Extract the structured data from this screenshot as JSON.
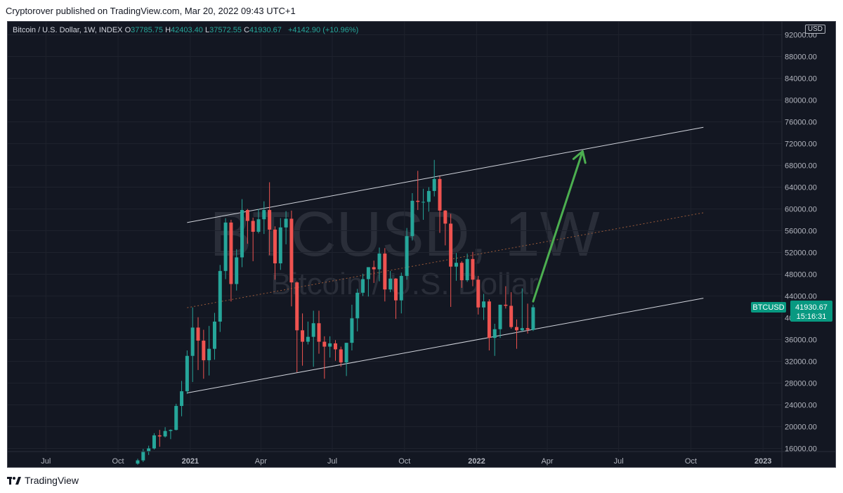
{
  "header": {
    "published_text": "Cryptorover published on TradingView.com, Mar 20, 2022 09:43 UTC+1"
  },
  "legend": {
    "symbol": "Bitcoin / U.S. Dollar, 1W, INDEX",
    "o_label": "O",
    "o_value": "37785.75",
    "h_label": "H",
    "h_value": "42403.40",
    "l_label": "L",
    "l_value": "37572.55",
    "c_label": "C",
    "c_value": "41930.67",
    "change": "+4142.90 (+10.96%)"
  },
  "currency_button": "USD",
  "watermark": {
    "main": "BTCUSD, 1W",
    "sub": "Bitcoin / U.S. Dollar"
  },
  "price_badge": {
    "symbol": "BTCUSD",
    "price": "41930.67",
    "countdown": "15:16:31"
  },
  "footer": {
    "brand": "TradingView"
  },
  "colors": {
    "up": "#26a69a",
    "down": "#ef5350",
    "background": "#131722",
    "arrow": "#4caf50",
    "accent": "#089981"
  },
  "chart_data": {
    "type": "candlestick",
    "title": "Bitcoin / U.S. Dollar, 1W, INDEX",
    "ylim": [
      14000,
      94000
    ],
    "y_ticks": [
      16000,
      20000,
      24000,
      28000,
      32000,
      36000,
      40000,
      44000,
      48000,
      52000,
      56000,
      60000,
      64000,
      68000,
      72000,
      76000,
      80000,
      84000,
      88000,
      92000
    ],
    "y_tick_labels": [
      "16000.00",
      "20000.00",
      "24000.00",
      "28000.00",
      "32000.00",
      "36000.00",
      "40000.00",
      "44000.00",
      "48000.00",
      "52000.00",
      "56000.00",
      "60000.00",
      "64000.00",
      "68000.00",
      "72000.00",
      "76000.00",
      "80000.00",
      "84000.00",
      "88000.00",
      "92000.00"
    ],
    "x_ticks": [
      {
        "label": "Jul",
        "date": "2020-07-01",
        "bold": false
      },
      {
        "label": "Oct",
        "date": "2020-10-01",
        "bold": false
      },
      {
        "label": "2021",
        "date": "2021-01-01",
        "bold": true
      },
      {
        "label": "Apr",
        "date": "2021-04-01",
        "bold": false
      },
      {
        "label": "Jul",
        "date": "2021-07-01",
        "bold": false
      },
      {
        "label": "Oct",
        "date": "2021-10-01",
        "bold": false
      },
      {
        "label": "2022",
        "date": "2022-01-01",
        "bold": true
      },
      {
        "label": "Apr",
        "date": "2022-04-01",
        "bold": false
      },
      {
        "label": "Jul",
        "date": "2022-07-01",
        "bold": false
      },
      {
        "label": "Oct",
        "date": "2022-10-01",
        "bold": false
      },
      {
        "label": "2023",
        "date": "2023-01-01",
        "bold": true
      }
    ],
    "candles": [
      {
        "date": "2020-10-26",
        "o": 13200,
        "h": 14100,
        "l": 13000,
        "c": 13800
      },
      {
        "date": "2020-11-02",
        "o": 13800,
        "h": 15900,
        "l": 13500,
        "c": 15500
      },
      {
        "date": "2020-11-09",
        "o": 15500,
        "h": 16500,
        "l": 14800,
        "c": 16000
      },
      {
        "date": "2020-11-16",
        "o": 16000,
        "h": 18800,
        "l": 15800,
        "c": 18400
      },
      {
        "date": "2020-11-23",
        "o": 18400,
        "h": 19400,
        "l": 16300,
        "c": 18200
      },
      {
        "date": "2020-11-30",
        "o": 18200,
        "h": 19900,
        "l": 18000,
        "c": 19200
      },
      {
        "date": "2020-12-07",
        "o": 19200,
        "h": 19500,
        "l": 17700,
        "c": 19400
      },
      {
        "date": "2020-12-14",
        "o": 19400,
        "h": 24200,
        "l": 19300,
        "c": 23800
      },
      {
        "date": "2020-12-21",
        "o": 23800,
        "h": 28400,
        "l": 21900,
        "c": 26500
      },
      {
        "date": "2020-12-28",
        "o": 26500,
        "h": 34000,
        "l": 26000,
        "c": 33000
      },
      {
        "date": "2021-01-04",
        "o": 33000,
        "h": 41900,
        "l": 28200,
        "c": 38200
      },
      {
        "date": "2021-01-11",
        "o": 38200,
        "h": 40100,
        "l": 30400,
        "c": 35800
      },
      {
        "date": "2021-01-18",
        "o": 35800,
        "h": 37800,
        "l": 28800,
        "c": 32200
      },
      {
        "date": "2021-01-25",
        "o": 32200,
        "h": 38500,
        "l": 29400,
        "c": 34300
      },
      {
        "date": "2021-02-01",
        "o": 34300,
        "h": 40900,
        "l": 32300,
        "c": 39300
      },
      {
        "date": "2021-02-08",
        "o": 39300,
        "h": 49700,
        "l": 37400,
        "c": 48600
      },
      {
        "date": "2021-02-15",
        "o": 48600,
        "h": 58300,
        "l": 47100,
        "c": 57500
      },
      {
        "date": "2021-02-22",
        "o": 57500,
        "h": 58000,
        "l": 43000,
        "c": 46200
      },
      {
        "date": "2021-03-01",
        "o": 46200,
        "h": 52600,
        "l": 45000,
        "c": 51100
      },
      {
        "date": "2021-03-08",
        "o": 51100,
        "h": 61800,
        "l": 49300,
        "c": 59800
      },
      {
        "date": "2021-03-15",
        "o": 59800,
        "h": 60000,
        "l": 53600,
        "c": 57800
      },
      {
        "date": "2021-03-22",
        "o": 57800,
        "h": 58400,
        "l": 50400,
        "c": 55800
      },
      {
        "date": "2021-03-29",
        "o": 55800,
        "h": 60000,
        "l": 55500,
        "c": 58100
      },
      {
        "date": "2021-04-05",
        "o": 58100,
        "h": 61400,
        "l": 55400,
        "c": 59800
      },
      {
        "date": "2021-04-12",
        "o": 59800,
        "h": 64900,
        "l": 51500,
        "c": 56200
      },
      {
        "date": "2021-04-19",
        "o": 56200,
        "h": 56800,
        "l": 47000,
        "c": 50000
      },
      {
        "date": "2021-04-26",
        "o": 50000,
        "h": 58300,
        "l": 48800,
        "c": 56600
      },
      {
        "date": "2021-05-03",
        "o": 56600,
        "h": 59600,
        "l": 53500,
        "c": 58200
      },
      {
        "date": "2021-05-10",
        "o": 58200,
        "h": 59700,
        "l": 42100,
        "c": 46500
      },
      {
        "date": "2021-05-17",
        "o": 46500,
        "h": 46700,
        "l": 30000,
        "c": 37700
      },
      {
        "date": "2021-05-24",
        "o": 37700,
        "h": 40800,
        "l": 31200,
        "c": 35600
      },
      {
        "date": "2021-05-31",
        "o": 35600,
        "h": 39300,
        "l": 35100,
        "c": 36500
      },
      {
        "date": "2021-06-07",
        "o": 36500,
        "h": 41300,
        "l": 31000,
        "c": 39000
      },
      {
        "date": "2021-06-14",
        "o": 39000,
        "h": 41300,
        "l": 33400,
        "c": 35600
      },
      {
        "date": "2021-06-21",
        "o": 35600,
        "h": 36600,
        "l": 28800,
        "c": 34700
      },
      {
        "date": "2021-06-28",
        "o": 34700,
        "h": 36600,
        "l": 32700,
        "c": 35300
      },
      {
        "date": "2021-07-05",
        "o": 35300,
        "h": 35900,
        "l": 32100,
        "c": 34200
      },
      {
        "date": "2021-07-12",
        "o": 34200,
        "h": 34700,
        "l": 31000,
        "c": 31800
      },
      {
        "date": "2021-07-19",
        "o": 31800,
        "h": 35400,
        "l": 29300,
        "c": 35400
      },
      {
        "date": "2021-07-26",
        "o": 35400,
        "h": 42400,
        "l": 34000,
        "c": 39900
      },
      {
        "date": "2021-08-02",
        "o": 39900,
        "h": 45300,
        "l": 37500,
        "c": 44600
      },
      {
        "date": "2021-08-09",
        "o": 44600,
        "h": 48100,
        "l": 44000,
        "c": 47100
      },
      {
        "date": "2021-08-16",
        "o": 47100,
        "h": 49300,
        "l": 43900,
        "c": 49300
      },
      {
        "date": "2021-08-23",
        "o": 49300,
        "h": 50500,
        "l": 46400,
        "c": 48900
      },
      {
        "date": "2021-08-30",
        "o": 48900,
        "h": 52900,
        "l": 46700,
        "c": 51800
      },
      {
        "date": "2021-09-06",
        "o": 51800,
        "h": 52800,
        "l": 43000,
        "c": 45200
      },
      {
        "date": "2021-09-13",
        "o": 45200,
        "h": 48600,
        "l": 44700,
        "c": 47200
      },
      {
        "date": "2021-09-20",
        "o": 47200,
        "h": 47300,
        "l": 39800,
        "c": 43200
      },
      {
        "date": "2021-09-27",
        "o": 43200,
        "h": 48300,
        "l": 40800,
        "c": 47700
      },
      {
        "date": "2021-10-04",
        "o": 47700,
        "h": 56500,
        "l": 47000,
        "c": 55000
      },
      {
        "date": "2021-10-11",
        "o": 55000,
        "h": 62900,
        "l": 54200,
        "c": 61500
      },
      {
        "date": "2021-10-18",
        "o": 61500,
        "h": 67000,
        "l": 59800,
        "c": 61300
      },
      {
        "date": "2021-10-25",
        "o": 61300,
        "h": 63700,
        "l": 58000,
        "c": 61300
      },
      {
        "date": "2021-11-01",
        "o": 61300,
        "h": 64000,
        "l": 59500,
        "c": 63300
      },
      {
        "date": "2021-11-08",
        "o": 63300,
        "h": 69000,
        "l": 62300,
        "c": 65500
      },
      {
        "date": "2021-11-15",
        "o": 65500,
        "h": 66000,
        "l": 55600,
        "c": 59700
      },
      {
        "date": "2021-11-22",
        "o": 59700,
        "h": 59800,
        "l": 53300,
        "c": 57300
      },
      {
        "date": "2021-11-29",
        "o": 57300,
        "h": 59100,
        "l": 42000,
        "c": 49400
      },
      {
        "date": "2021-12-06",
        "o": 49400,
        "h": 51900,
        "l": 46800,
        "c": 50100
      },
      {
        "date": "2021-12-13",
        "o": 50100,
        "h": 50400,
        "l": 45500,
        "c": 46900
      },
      {
        "date": "2021-12-20",
        "o": 46900,
        "h": 51800,
        "l": 46600,
        "c": 50800
      },
      {
        "date": "2021-12-27",
        "o": 50800,
        "h": 52100,
        "l": 45800,
        "c": 47000
      },
      {
        "date": "2022-01-03",
        "o": 47000,
        "h": 47700,
        "l": 40600,
        "c": 41900
      },
      {
        "date": "2022-01-10",
        "o": 41900,
        "h": 44400,
        "l": 39600,
        "c": 43000
      },
      {
        "date": "2022-01-17",
        "o": 43000,
        "h": 43400,
        "l": 34000,
        "c": 36300
      },
      {
        "date": "2022-01-24",
        "o": 36300,
        "h": 38900,
        "l": 33000,
        "c": 37900
      },
      {
        "date": "2022-01-31",
        "o": 37900,
        "h": 42400,
        "l": 36300,
        "c": 42400
      },
      {
        "date": "2022-02-07",
        "o": 42400,
        "h": 45800,
        "l": 41700,
        "c": 42200
      },
      {
        "date": "2022-02-14",
        "o": 42200,
        "h": 44700,
        "l": 38000,
        "c": 38300
      },
      {
        "date": "2022-02-21",
        "o": 38300,
        "h": 39700,
        "l": 34300,
        "c": 37700
      },
      {
        "date": "2022-02-28",
        "o": 37700,
        "h": 45400,
        "l": 37500,
        "c": 38100
      },
      {
        "date": "2022-03-07",
        "o": 38100,
        "h": 42600,
        "l": 37100,
        "c": 37800
      },
      {
        "date": "2022-03-14",
        "o": 37785.75,
        "h": 42403.4,
        "l": 37572.55,
        "c": 41930.67
      }
    ],
    "drawings": {
      "channel_upper": {
        "from": {
          "date": "2020-12-28",
          "price": 57500
        },
        "to": {
          "date": "2022-10-17",
          "price": 75000
        }
      },
      "channel_lower": {
        "from": {
          "date": "2020-12-28",
          "price": 26200
        },
        "to": {
          "date": "2022-10-17",
          "price": 43600
        }
      },
      "channel_mid": {
        "from": {
          "date": "2020-12-28",
          "price": 41850
        },
        "to": {
          "date": "2022-10-17",
          "price": 59300
        }
      },
      "arrow": {
        "from": {
          "date": "2022-03-14",
          "price": 43000
        },
        "to": {
          "date": "2022-05-16",
          "price": 70600
        }
      }
    }
  }
}
